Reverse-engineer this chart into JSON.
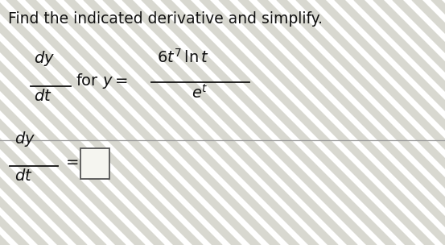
{
  "background_color": "#e8e8e0",
  "stripe_color1": "#ddddd5",
  "stripe_color2": "#e8e8e0",
  "title_text": "Find the indicated derivative and simplify.",
  "title_fontsize": 13.5,
  "text_color": "#111111",
  "box_edge_color": "#555555",
  "box_face_color": "#f0f0f0",
  "separator_color": "#aaaaaa",
  "fig_width": 5.53,
  "fig_height": 3.04,
  "dpi": 100
}
